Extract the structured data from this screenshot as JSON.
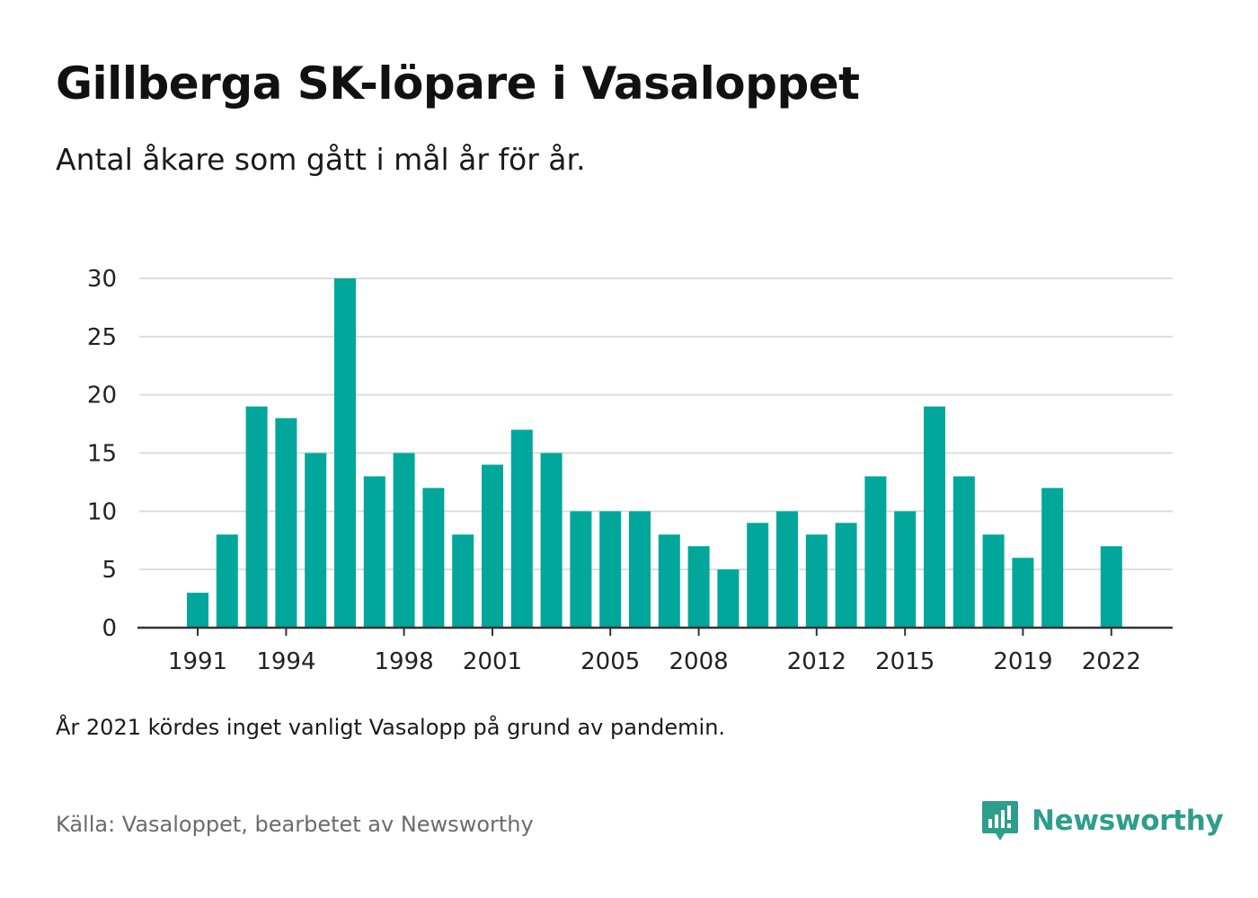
{
  "title": "Gillberga SK-löpare i Vasaloppet",
  "subtitle": "Antal åkare som gått i mål år för år.",
  "note": "År 2021 kördes inget vanligt Vasalopp på grund av pandemin.",
  "source": "Källa: Vasaloppet, bearbetet av Newsworthy",
  "brand": {
    "name": "Newsworthy",
    "icon": "newsworthy-logo-icon"
  },
  "colors": {
    "bar": "#00a79a",
    "grid": "#dddddd",
    "axis": "#333333",
    "brand": "#2e9e8c"
  },
  "chart_data": {
    "type": "bar",
    "x": [
      1991,
      1992,
      1993,
      1994,
      1995,
      1996,
      1997,
      1998,
      1999,
      2000,
      2001,
      2002,
      2003,
      2004,
      2005,
      2006,
      2007,
      2008,
      2009,
      2010,
      2011,
      2012,
      2013,
      2014,
      2015,
      2016,
      2017,
      2018,
      2019,
      2020,
      2021,
      2022
    ],
    "values": [
      3,
      8,
      19,
      18,
      15,
      30,
      13,
      15,
      12,
      8,
      14,
      17,
      15,
      10,
      10,
      10,
      8,
      7,
      5,
      9,
      10,
      8,
      9,
      13,
      10,
      19,
      13,
      8,
      6,
      12,
      null,
      7
    ],
    "x_tick_labels": [
      1991,
      1994,
      1998,
      2001,
      2005,
      2008,
      2012,
      2015,
      2019,
      2022
    ],
    "y_ticks": [
      0,
      5,
      10,
      15,
      20,
      25,
      30
    ],
    "ylim": [
      0,
      30
    ],
    "xlabel": "",
    "ylabel": "",
    "grid": true
  }
}
